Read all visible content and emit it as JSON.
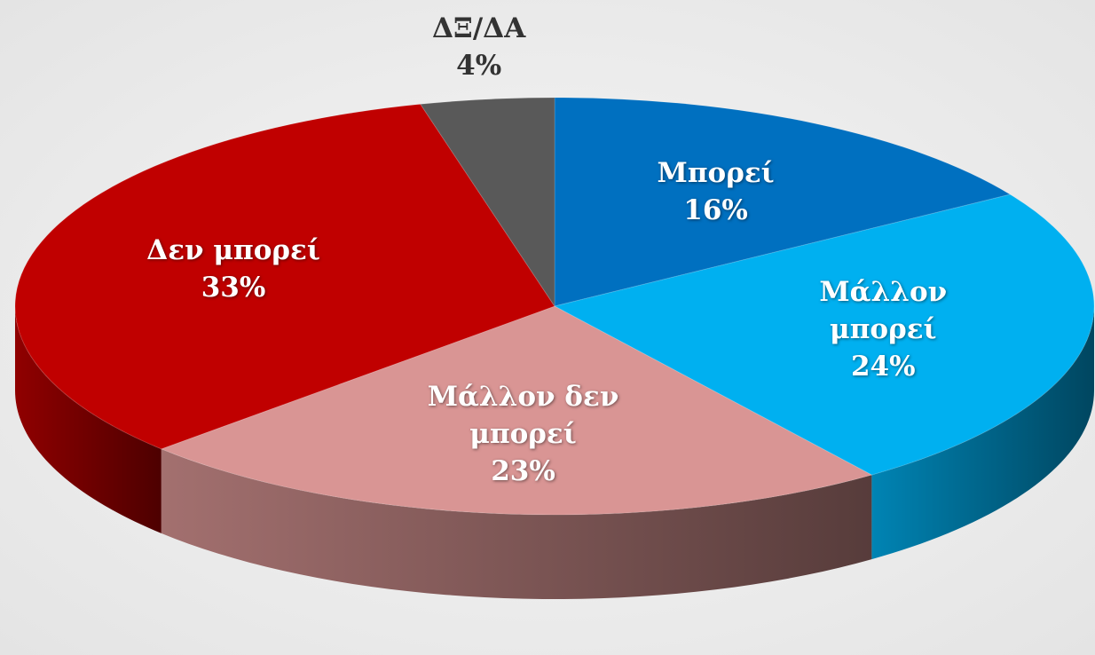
{
  "chart_data": {
    "type": "pie",
    "categories": [
      "Μπορεί",
      "Μάλλον μπορεί",
      "Μάλλον δεν μπορεί",
      "Δεν μπορεί",
      "ΔΞ/ΔΑ"
    ],
    "values": [
      16,
      24,
      23,
      33,
      4
    ],
    "value_labels": [
      "16%",
      "24%",
      "23%",
      "33%",
      "4%"
    ],
    "colors": [
      "#0070c0",
      "#00b0f0",
      "#d99594",
      "#c00000",
      "#595959"
    ]
  }
}
